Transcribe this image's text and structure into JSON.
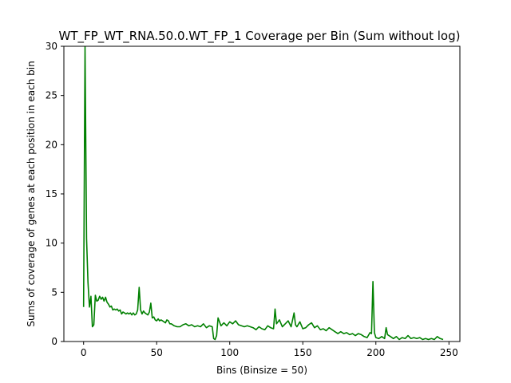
{
  "chart_data": {
    "type": "line",
    "title": "WT_FP_WT_RNA.50.0.WT_FP_1 Coverage per Bin (Sum without log)",
    "xlabel": "Bins (Binsize = 50)",
    "ylabel": "Sums of coverage of genes at each position in each bin",
    "xlim": [
      -13.5,
      257.5
    ],
    "ylim": [
      0,
      30
    ],
    "x_ticks": [
      0,
      50,
      100,
      150,
      200,
      250
    ],
    "y_ticks": [
      0,
      5,
      10,
      15,
      20,
      25,
      30
    ],
    "grid": false,
    "series": [
      {
        "color": "#008000",
        "x": [
          0,
          1,
          2,
          3,
          4,
          5,
          6,
          7,
          8,
          9,
          10,
          11,
          12,
          13,
          14,
          15,
          16,
          17,
          18,
          19,
          20,
          21,
          22,
          23,
          24,
          25,
          26,
          27,
          28,
          29,
          30,
          31,
          32,
          33,
          34,
          35,
          36,
          37,
          38,
          39,
          40,
          41,
          42,
          43,
          44,
          45,
          46,
          47,
          48,
          49,
          50,
          51,
          52,
          53,
          54,
          55,
          56,
          57,
          58,
          59,
          60,
          62,
          64,
          66,
          68,
          70,
          72,
          74,
          76,
          78,
          80,
          82,
          84,
          86,
          88,
          89,
          90,
          91,
          92,
          94,
          96,
          98,
          100,
          102,
          104,
          106,
          108,
          110,
          112,
          114,
          116,
          118,
          120,
          122,
          124,
          126,
          128,
          130,
          131,
          132,
          134,
          136,
          138,
          140,
          142,
          144,
          145,
          146,
          148,
          150,
          152,
          154,
          156,
          158,
          160,
          162,
          164,
          166,
          168,
          170,
          172,
          174,
          176,
          178,
          180,
          182,
          184,
          186,
          188,
          190,
          192,
          194,
          196,
          197,
          198,
          199,
          200,
          202,
          204,
          206,
          207,
          208,
          210,
          212,
          214,
          216,
          218,
          220,
          222,
          224,
          226,
          228,
          230,
          232,
          234,
          236,
          238,
          240,
          242,
          244,
          246
        ],
        "values": [
          3.5,
          30,
          10.5,
          6,
          3.5,
          4.6,
          1.5,
          1.7,
          4.7,
          4.1,
          4.2,
          4.6,
          4.3,
          4.5,
          4.1,
          4.5,
          4.0,
          3.8,
          3.5,
          3.6,
          3.2,
          3.3,
          3.2,
          3.3,
          3.1,
          3.2,
          2.8,
          3.0,
          2.9,
          2.8,
          2.9,
          2.8,
          2.9,
          2.7,
          2.9,
          2.7,
          2.8,
          3.2,
          5.5,
          3.2,
          2.8,
          3.1,
          2.9,
          2.8,
          2.7,
          3.0,
          3.9,
          2.4,
          2.5,
          2.2,
          2.1,
          2.3,
          2.1,
          2.2,
          2.1,
          2.0,
          1.9,
          2.2,
          2.1,
          1.8,
          1.8,
          1.6,
          1.5,
          1.5,
          1.7,
          1.8,
          1.6,
          1.7,
          1.5,
          1.6,
          1.5,
          1.8,
          1.4,
          1.6,
          1.5,
          0.3,
          0.2,
          0.6,
          2.4,
          1.6,
          1.9,
          1.6,
          2.0,
          1.8,
          2.1,
          1.7,
          1.6,
          1.5,
          1.6,
          1.5,
          1.4,
          1.2,
          1.5,
          1.3,
          1.2,
          1.6,
          1.4,
          1.3,
          3.3,
          1.8,
          2.2,
          1.5,
          1.8,
          2.1,
          1.5,
          2.9,
          1.7,
          1.5,
          2.0,
          1.3,
          1.4,
          1.7,
          1.9,
          1.4,
          1.6,
          1.2,
          1.3,
          1.1,
          1.4,
          1.2,
          1.0,
          0.8,
          1.0,
          0.8,
          0.9,
          0.7,
          0.8,
          0.6,
          0.8,
          0.7,
          0.5,
          0.4,
          0.9,
          0.8,
          6.1,
          0.9,
          0.4,
          0.3,
          0.5,
          0.3,
          1.4,
          0.7,
          0.5,
          0.3,
          0.5,
          0.2,
          0.4,
          0.3,
          0.6,
          0.3,
          0.4,
          0.3,
          0.4,
          0.2,
          0.3,
          0.2,
          0.3,
          0.2,
          0.5,
          0.3,
          0.2
        ]
      }
    ]
  }
}
